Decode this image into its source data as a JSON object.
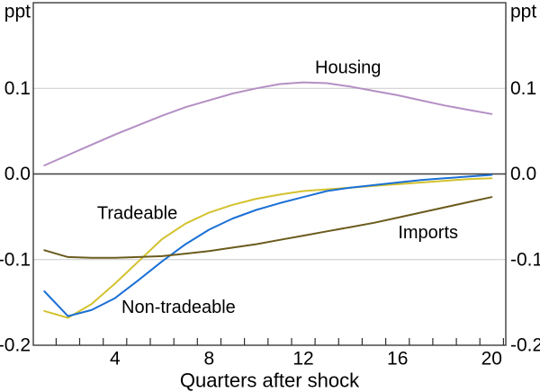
{
  "chart_data": {
    "type": "line",
    "title": "",
    "unit_label": "ppt",
    "xlabel": "Quarters after shock",
    "grid": "horizontal",
    "legend_position": "inline-labels",
    "x": [
      1,
      2,
      3,
      4,
      5,
      6,
      7,
      8,
      9,
      10,
      11,
      12,
      13,
      14,
      15,
      16,
      17,
      18,
      19,
      20
    ],
    "xlim": [
      0.53,
      20.6
    ],
    "ylim": [
      -0.2,
      0.2
    ],
    "xticks": [
      {
        "value": 4,
        "label": "4"
      },
      {
        "value": 8,
        "label": "8"
      },
      {
        "value": 12,
        "label": "12"
      },
      {
        "value": 16,
        "label": "16"
      },
      {
        "value": 20,
        "label": "20"
      }
    ],
    "xticks_minor": [
      1.5,
      2.5,
      3.5,
      4.5,
      5.5,
      6.5,
      7.5,
      8.5,
      9.5,
      10.5,
      11.5,
      12.5,
      13.5,
      14.5,
      15.5,
      16.5,
      17.5,
      18.5,
      19.5,
      20.5
    ],
    "yticks": [
      {
        "value": 0.1,
        "label": "0.1",
        "grid": true,
        "zero": false
      },
      {
        "value": 0.0,
        "label": "0.0",
        "grid": false,
        "zero": true
      },
      {
        "value": -0.1,
        "label": "-0.1",
        "grid": true,
        "zero": false
      },
      {
        "value": -0.2,
        "label": "-0.2",
        "grid": false,
        "zero": false
      }
    ],
    "colors": {
      "grid": "#c9c9c9",
      "zero_line": "#3d3d3d",
      "frame": "#2e2e2e",
      "text": "#000000"
    },
    "series": [
      {
        "id": "housing",
        "name": "Housing",
        "color": "#b48fc4",
        "label_anchor": {
          "x": 13.9,
          "y": 0.124
        },
        "values": [
          0.01,
          0.022,
          0.034,
          0.046,
          0.057,
          0.068,
          0.078,
          0.086,
          0.094,
          0.1,
          0.105,
          0.107,
          0.106,
          0.102,
          0.097,
          0.092,
          0.086,
          0.08,
          0.075,
          0.07
        ]
      },
      {
        "id": "tradeable",
        "name": "Tradeable",
        "color": "#d3c22e",
        "label_anchor": {
          "x": 4.95,
          "y": -0.046
        },
        "values": [
          -0.16,
          -0.168,
          -0.152,
          -0.128,
          -0.102,
          -0.076,
          -0.058,
          -0.045,
          -0.036,
          -0.029,
          -0.024,
          -0.02,
          -0.018,
          -0.016,
          -0.014,
          -0.012,
          -0.01,
          -0.008,
          -0.006,
          -0.005
        ]
      },
      {
        "id": "non-tradeable",
        "name": "Non-tradeable",
        "color": "#1b70d5",
        "label_anchor": {
          "x": 6.7,
          "y": -0.156
        },
        "values": [
          -0.137,
          -0.166,
          -0.159,
          -0.145,
          -0.124,
          -0.102,
          -0.082,
          -0.065,
          -0.052,
          -0.042,
          -0.034,
          -0.027,
          -0.02,
          -0.016,
          -0.013,
          -0.01,
          -0.007,
          -0.005,
          -0.003,
          -0.001
        ]
      },
      {
        "id": "imports",
        "name": "Imports",
        "color": "#6b5b1d",
        "label_anchor": {
          "x": 17.3,
          "y": -0.069
        },
        "values": [
          -0.089,
          -0.097,
          -0.098,
          -0.098,
          -0.097,
          -0.096,
          -0.093,
          -0.09,
          -0.086,
          -0.082,
          -0.077,
          -0.072,
          -0.067,
          -0.062,
          -0.057,
          -0.051,
          -0.045,
          -0.039,
          -0.033,
          -0.027
        ]
      }
    ]
  }
}
